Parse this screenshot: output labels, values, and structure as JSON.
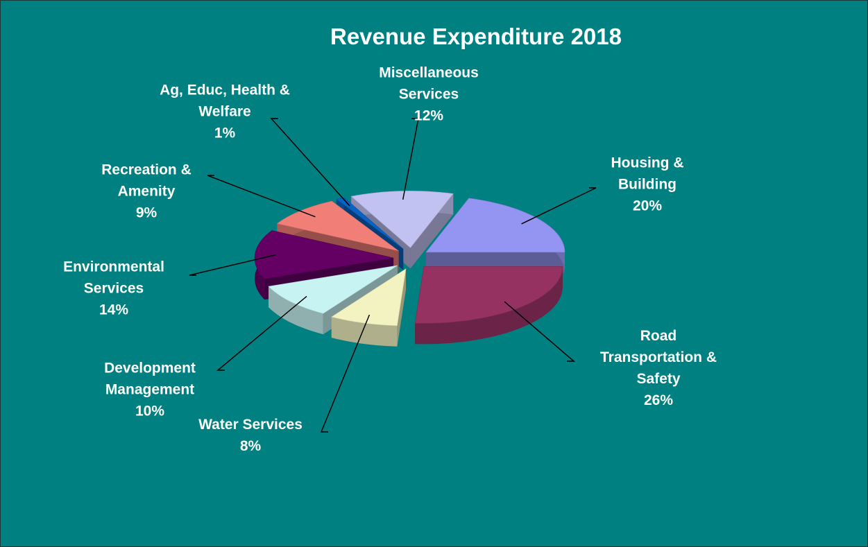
{
  "chart_data": {
    "type": "pie",
    "title": "Revenue Expenditure 2018",
    "categories": [
      "Housing & Building",
      "Road Transportation & Safety",
      "Water Services",
      "Development Management",
      "Environmental Services",
      "Recreation & Amenity",
      "Ag, Educ, Health & Welfare",
      "Miscellaneous Services"
    ],
    "values": [
      20,
      26,
      8,
      10,
      14,
      9,
      1,
      12
    ],
    "value_labels": [
      "20%",
      "26%",
      "8%",
      "10%",
      "14%",
      "9%",
      "1%",
      "12%"
    ],
    "colors": [
      "#9494f2",
      "#953262",
      "#f3f3c2",
      "#c8f3f3",
      "#640064",
      "#f27e78",
      "#0a62c2",
      "#c2c2f2"
    ]
  }
}
